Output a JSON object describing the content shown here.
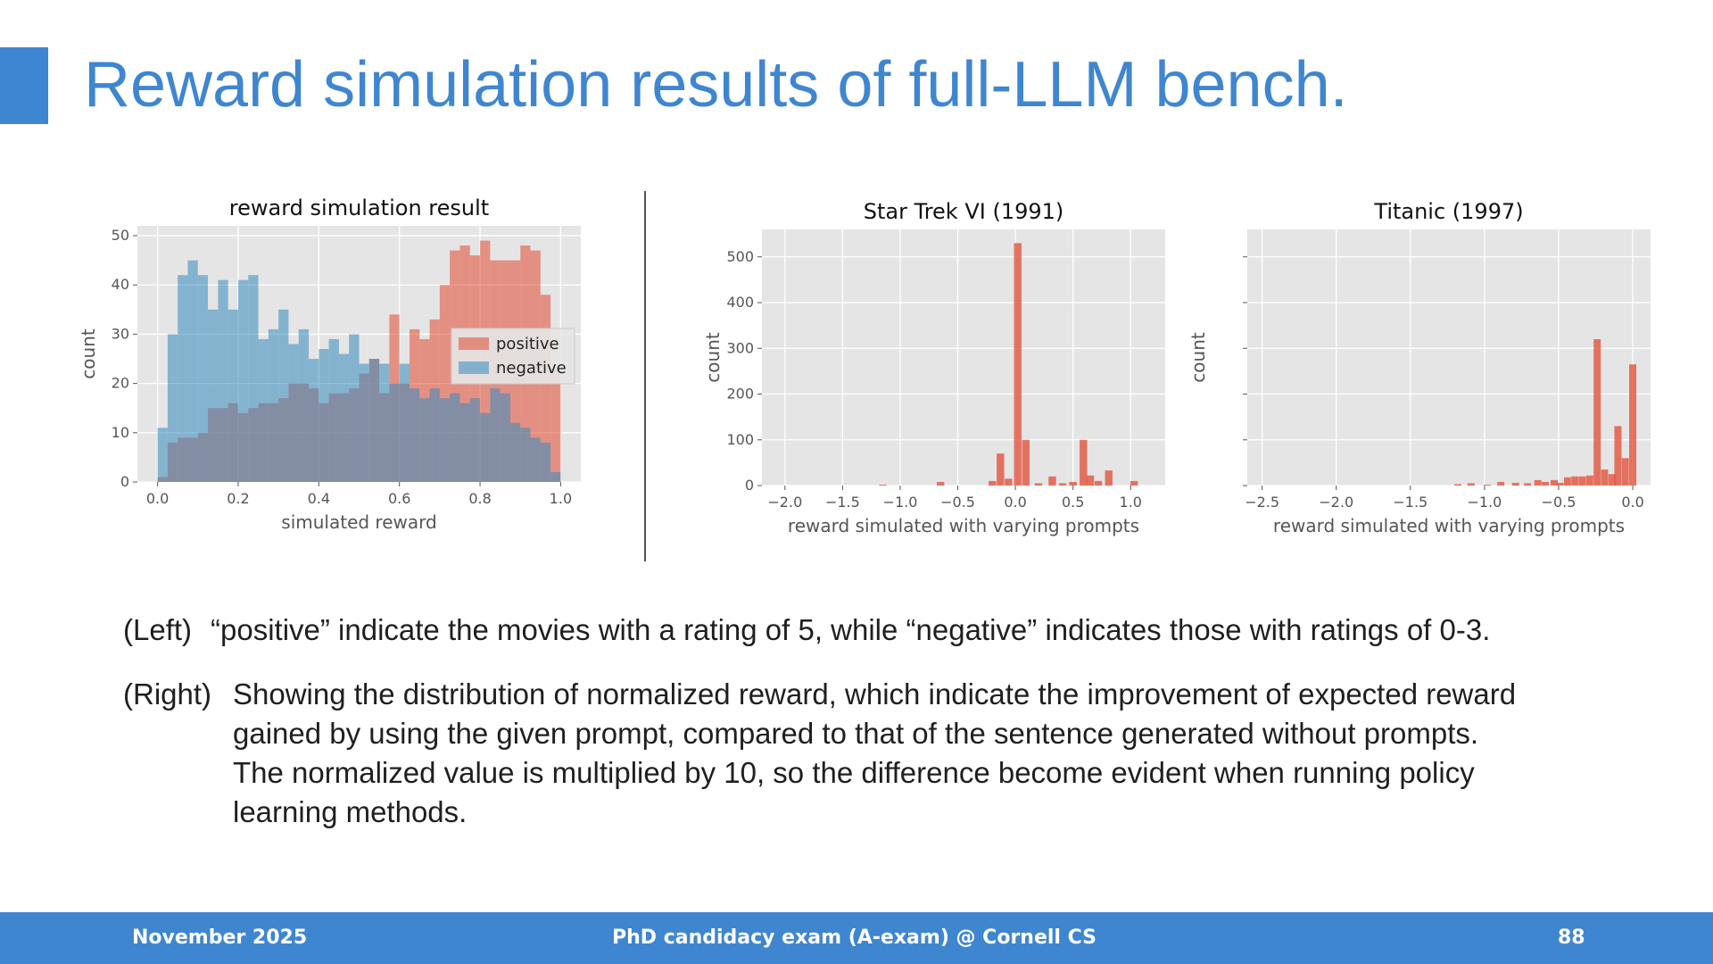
{
  "slide": {
    "title": "Reward simulation results of full-LLM bench.",
    "accent_color": "#3f86d0"
  },
  "captions": {
    "left_tag": "(Left)",
    "left_text": "“positive” indicate the movies with a rating of 5, while “negative” indicates those with ratings of 0-3.",
    "right_tag": "(Right)",
    "right_lines": [
      "Showing the distribution of normalized reward, which indicate the improvement of expected reward",
      "gained by using the given prompt, compared to that of the sentence generated without prompts.",
      "The normalized value is multiplied by 10, so the difference become evident when running policy",
      "learning methods."
    ]
  },
  "footer": {
    "date": "November 2025",
    "event": "PhD candidacy exam (A-exam) @ Cornell CS",
    "page": "88"
  },
  "chart_data": [
    {
      "type": "bar",
      "title": "reward simulation result",
      "xlabel": "simulated reward",
      "ylabel": "count",
      "xlim": [
        -0.05,
        1.05
      ],
      "ylim": [
        0,
        52
      ],
      "xticks": [
        0.0,
        0.2,
        0.4,
        0.6,
        0.8,
        1.0
      ],
      "xtick_labels": [
        "0.0",
        "0.2",
        "0.4",
        "0.6",
        "0.8",
        "1.0"
      ],
      "yticks": [
        0,
        10,
        20,
        30,
        40,
        50
      ],
      "ytick_labels": [
        "0",
        "10",
        "20",
        "30",
        "40",
        "50"
      ],
      "grid": true,
      "legend": "right",
      "bin_edges": [
        0.0,
        0.025,
        0.05,
        0.075,
        0.1,
        0.125,
        0.15,
        0.175,
        0.2,
        0.225,
        0.25,
        0.275,
        0.3,
        0.325,
        0.35,
        0.375,
        0.4,
        0.425,
        0.45,
        0.475,
        0.5,
        0.525,
        0.55,
        0.575,
        0.6,
        0.625,
        0.65,
        0.675,
        0.7,
        0.725,
        0.75,
        0.775,
        0.8,
        0.825,
        0.85,
        0.875,
        0.9,
        0.925,
        0.95,
        0.975,
        1.0
      ],
      "series": [
        {
          "name": "positive",
          "color": "#e24a33",
          "values": [
            1,
            8,
            9,
            9,
            10,
            15,
            15,
            16,
            14,
            15,
            16,
            16,
            17,
            20,
            20,
            19,
            16,
            18,
            18,
            19,
            22,
            25,
            18,
            34,
            20,
            31,
            29,
            33,
            40,
            47,
            48,
            46,
            49,
            45,
            45,
            45,
            48,
            47,
            38,
            23
          ]
        },
        {
          "name": "negative",
          "color": "#348abd",
          "values": [
            11,
            30,
            42,
            45,
            42,
            35,
            41,
            35,
            41,
            42,
            29,
            31,
            35,
            28,
            31,
            25,
            27,
            29,
            26,
            30,
            24,
            25,
            24,
            20,
            24,
            19,
            17,
            19,
            17,
            18,
            16,
            17,
            14,
            19,
            18,
            12,
            11,
            9,
            8,
            2
          ]
        }
      ]
    },
    {
      "type": "bar",
      "title": "Star Trek VI (1991)",
      "xlabel": "reward simulated with varying prompts",
      "ylabel": "count",
      "xlim": [
        -2.2,
        1.3
      ],
      "ylim": [
        0,
        560
      ],
      "xticks": [
        -2.0,
        -1.5,
        -1.0,
        -0.5,
        0.0,
        0.5,
        1.0
      ],
      "xtick_labels": [
        "−2.0",
        "−1.5",
        "−1.0",
        "−0.5",
        "0.0",
        "0.5",
        "1.0"
      ],
      "yticks": [
        0,
        100,
        200,
        300,
        400,
        500
      ],
      "ytick_labels": [
        "0",
        "100",
        "200",
        "300",
        "400",
        "500"
      ],
      "grid": true,
      "bar_width": 0.065,
      "series": [
        {
          "name": "",
          "color": "#e24a33",
          "x": [
            -1.15,
            -0.65,
            -0.2,
            -0.13,
            -0.06,
            0.02,
            0.09,
            0.2,
            0.32,
            0.41,
            0.5,
            0.59,
            0.65,
            0.72,
            0.81,
            1.03
          ],
          "values": [
            2,
            8,
            10,
            70,
            15,
            530,
            100,
            5,
            20,
            5,
            8,
            100,
            22,
            10,
            33,
            10
          ]
        }
      ]
    },
    {
      "type": "bar",
      "title": "Titanic (1997)",
      "xlabel": "reward simulated with varying prompts",
      "ylabel": "count",
      "xlim": [
        -2.6,
        0.12
      ],
      "ylim": [
        0,
        560
      ],
      "xticks": [
        -2.5,
        -2.0,
        -1.5,
        -1.0,
        -0.5,
        0.0
      ],
      "xtick_labels": [
        "−2.5",
        "−2.0",
        "−1.5",
        "−1.0",
        "−0.5",
        "0.0"
      ],
      "yticks": [
        0,
        100,
        200,
        300,
        400,
        500
      ],
      "ytick_labels": [
        "",
        "",
        "",
        "",
        "",
        ""
      ],
      "grid": true,
      "bar_width": 0.048,
      "series": [
        {
          "name": "",
          "color": "#e24a33",
          "x": [
            -1.18,
            -1.09,
            -0.98,
            -0.89,
            -0.79,
            -0.71,
            -0.64,
            -0.59,
            -0.53,
            -0.49,
            -0.44,
            -0.39,
            -0.34,
            -0.29,
            -0.24,
            -0.19,
            -0.14,
            -0.1,
            -0.05,
            0.0
          ],
          "values": [
            3,
            5,
            2,
            8,
            6,
            5,
            12,
            8,
            12,
            6,
            18,
            20,
            20,
            22,
            320,
            35,
            25,
            130,
            60,
            265
          ]
        }
      ]
    }
  ]
}
